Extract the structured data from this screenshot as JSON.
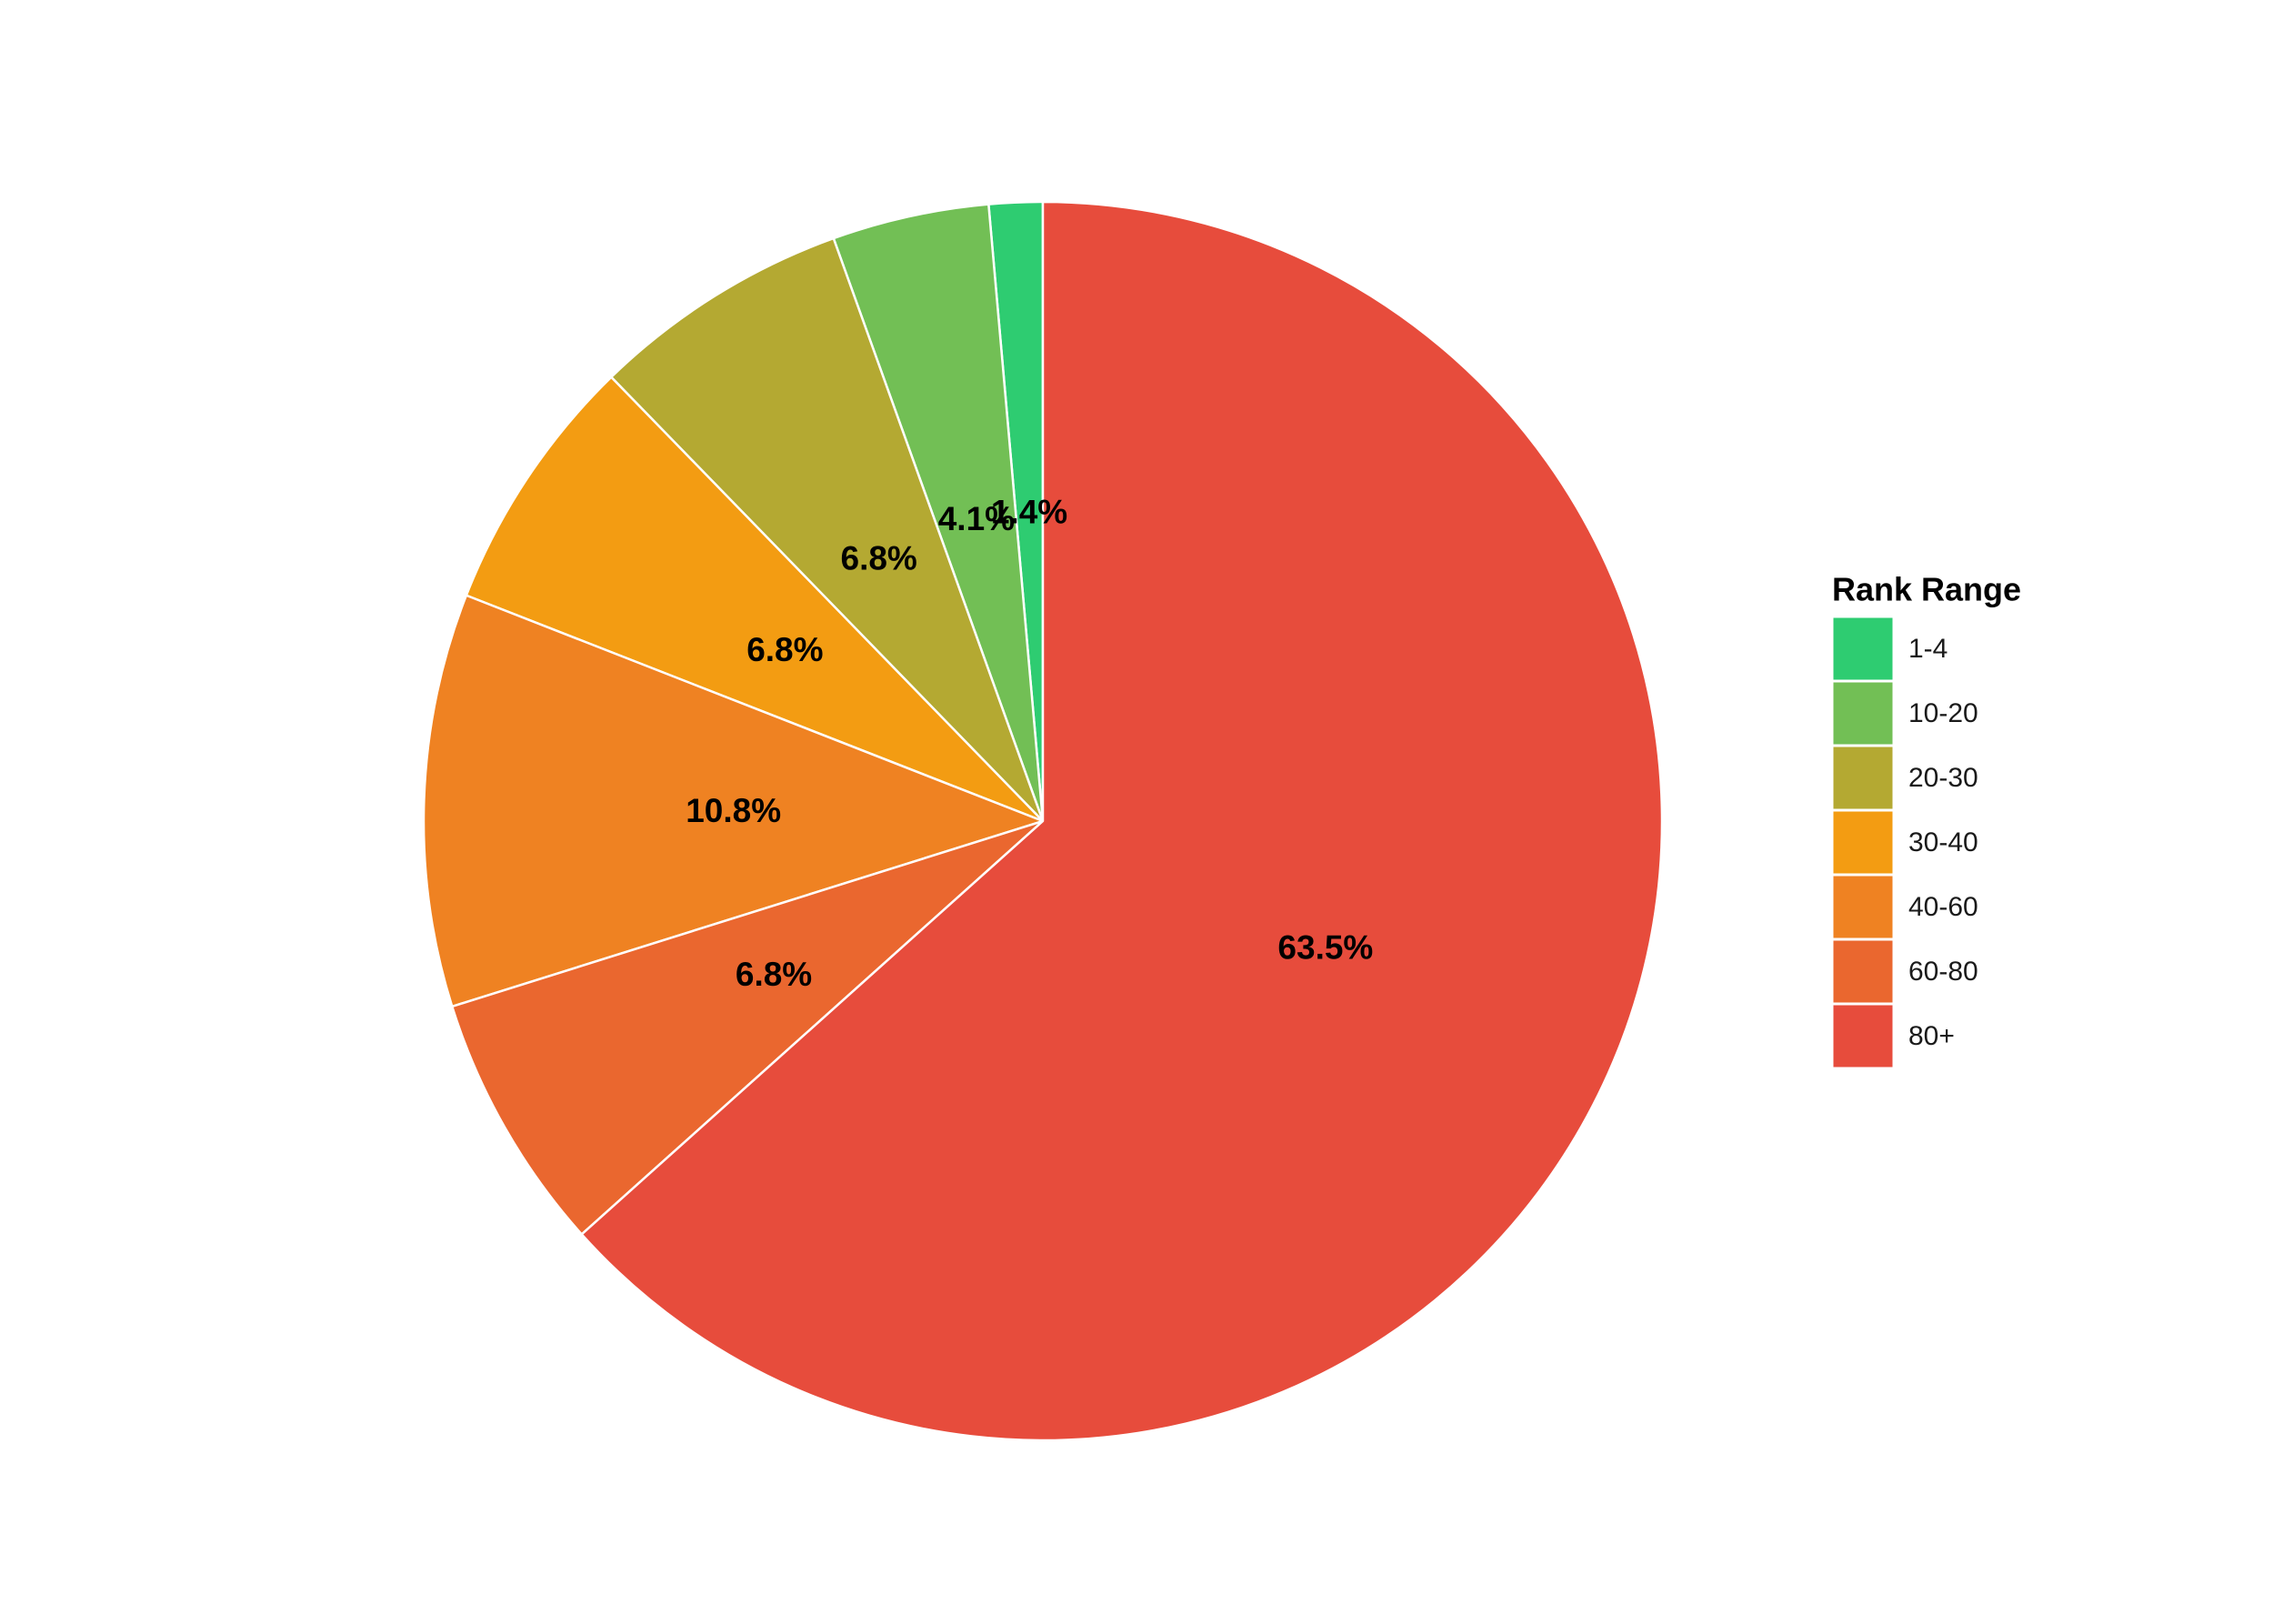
{
  "chart_data": {
    "type": "pie",
    "title": "",
    "legend_title": "Rank Range",
    "legend_position": "right",
    "start_angle": "12 o'clock",
    "direction": "counter-clockwise",
    "slices": [
      {
        "label": "1-4",
        "value": 1.4,
        "display": "1.4%",
        "color": "#2ecc71"
      },
      {
        "label": "10-20",
        "value": 4.1,
        "display": "4.1%",
        "color": "#72bf55"
      },
      {
        "label": "20-30",
        "value": 6.8,
        "display": "6.8%",
        "color": "#b4a932"
      },
      {
        "label": "30-40",
        "value": 6.8,
        "display": "6.8%",
        "color": "#f39c12"
      },
      {
        "label": "40-60",
        "value": 10.8,
        "display": "10.8%",
        "color": "#ef8222"
      },
      {
        "label": "60-80",
        "value": 6.8,
        "display": "6.8%",
        "color": "#ea672f"
      },
      {
        "label": "80+",
        "value": 63.5,
        "display": "63.5%",
        "color": "#e74c3c"
      }
    ]
  }
}
